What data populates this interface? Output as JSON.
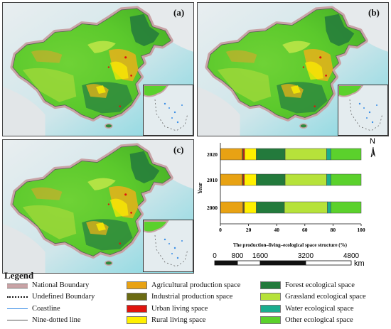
{
  "panels": [
    {
      "label": "(a)"
    },
    {
      "label": "(b)"
    },
    {
      "label": "(c)"
    }
  ],
  "north": "N",
  "chart_data": {
    "type": "bar",
    "orientation": "horizontal",
    "stacked": true,
    "categories": [
      "2020",
      "2010",
      "2000"
    ],
    "series": [
      {
        "name": "Agricultural production space",
        "color": "#e8a213",
        "values": [
          15.5,
          15.5,
          16.0
        ]
      },
      {
        "name": "Industrial production space",
        "color": "#6b6b13",
        "values": [
          0.7,
          0.7,
          0.6
        ]
      },
      {
        "name": "Urban living space",
        "color": "#e0140e",
        "values": [
          1.0,
          0.8,
          0.4
        ]
      },
      {
        "name": "Rural living space",
        "color": "#fff000",
        "values": [
          8.3,
          8.5,
          8.5
        ]
      },
      {
        "name": "Forest ecological space",
        "color": "#237a3c",
        "values": [
          20.5,
          20.5,
          20.0
        ]
      },
      {
        "name": "Grassland ecological space",
        "color": "#b6e23a",
        "values": [
          29.5,
          29.5,
          30.5
        ]
      },
      {
        "name": "Water ecological space",
        "color": "#1aad8f",
        "values": [
          3.0,
          3.0,
          2.5
        ]
      },
      {
        "name": "Other ecological space",
        "color": "#5bd12c",
        "values": [
          21.5,
          21.5,
          21.5
        ]
      }
    ],
    "xlabel": "The production–living–ecological space structure (%)",
    "ylabel": "Year",
    "xlim": [
      0,
      100
    ],
    "xticks": [
      "0",
      "20",
      "40",
      "60",
      "80",
      "100"
    ]
  },
  "scale_bar": {
    "ticks": [
      "0",
      "800",
      "1600",
      "3200",
      "4800"
    ],
    "values": [
      0,
      800,
      1600,
      3200,
      4800
    ],
    "unit": "km"
  },
  "legend": {
    "title": "Legend",
    "boundary_items": [
      {
        "label": "National Boundary"
      },
      {
        "label": "Undefined Boundary"
      },
      {
        "label": "Coastline"
      },
      {
        "label": "Nine-dotted line"
      }
    ],
    "land_items": [
      {
        "label": "Agricultural production space",
        "color": "#e8a213"
      },
      {
        "label": "Industrial production space",
        "color": "#6b6b13"
      },
      {
        "label": "Urban living space",
        "color": "#e0140e"
      },
      {
        "label": "Rural living space",
        "color": "#fff000"
      },
      {
        "label": "Forest ecological space",
        "color": "#237a3c"
      },
      {
        "label": "Grassland ecological space",
        "color": "#b6e23a"
      },
      {
        "label": "Water ecological space",
        "color": "#1aad8f"
      },
      {
        "label": "Other ecological space",
        "color": "#5bd12c"
      }
    ]
  }
}
